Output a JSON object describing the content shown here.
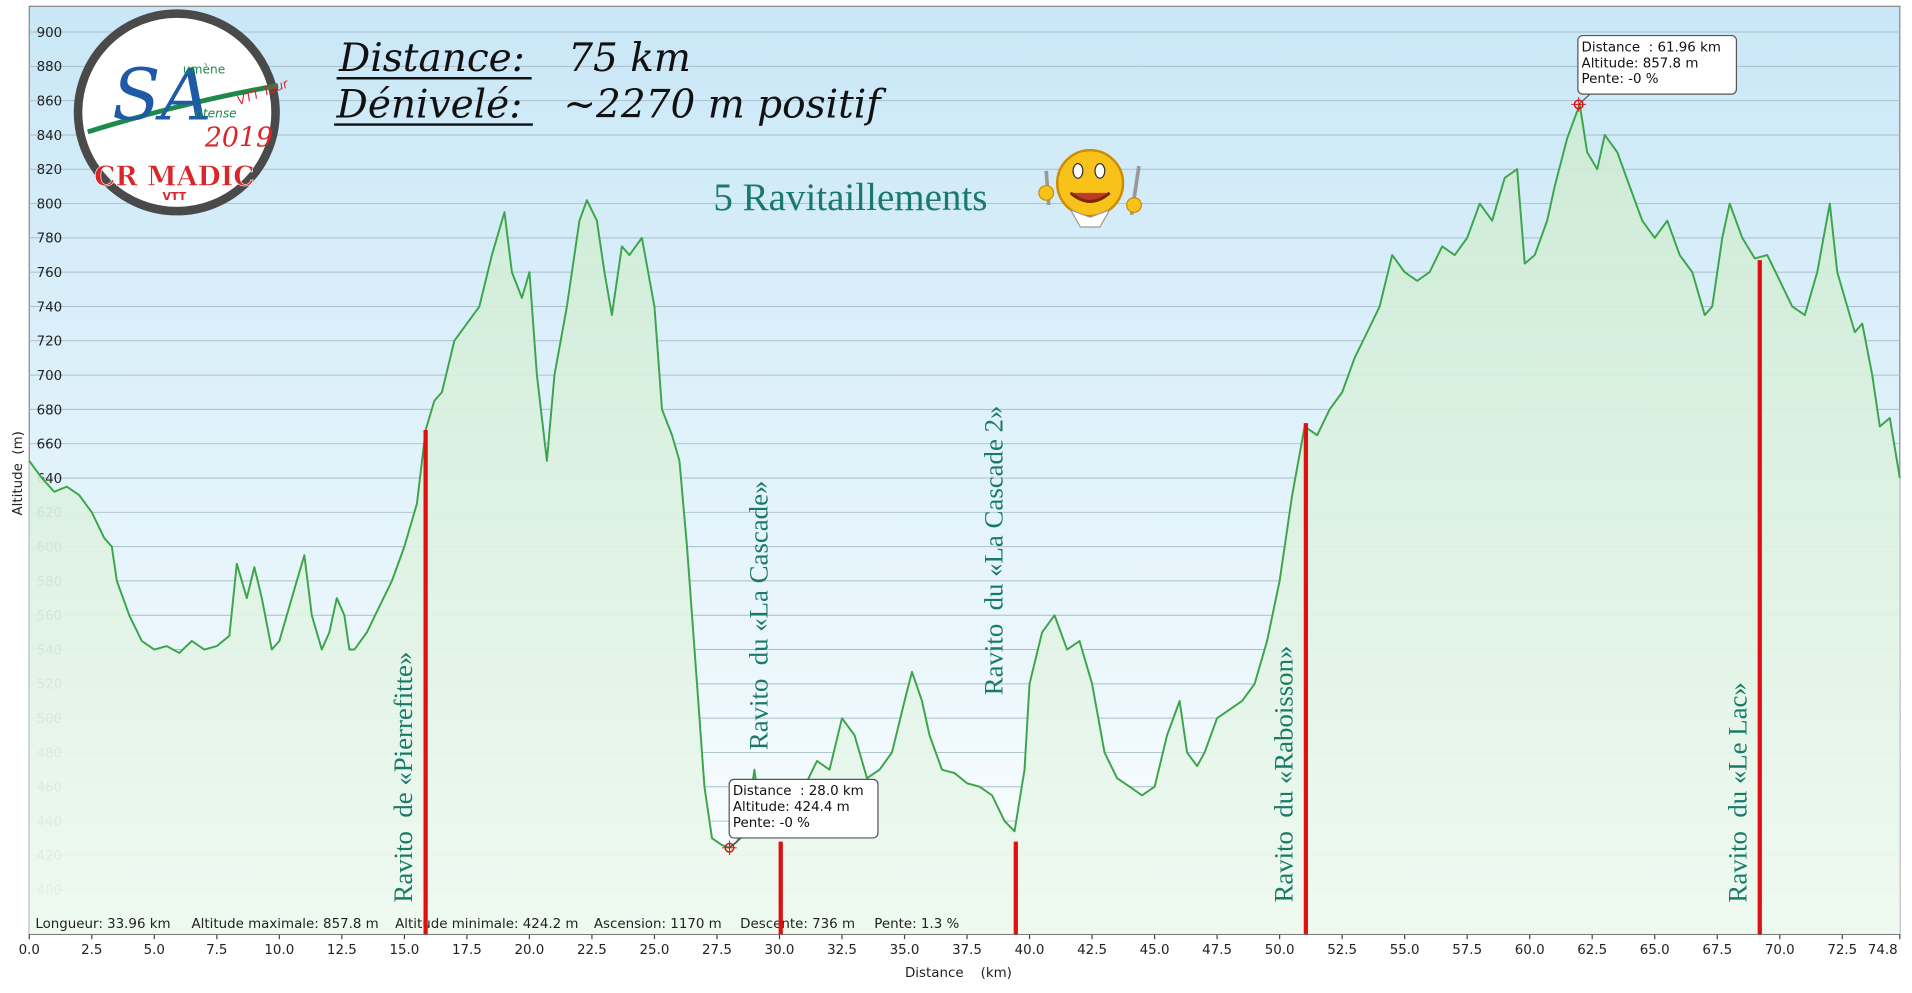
{
  "chart_data": {
    "type": "area",
    "title_lines": [
      {
        "label": "Distance:",
        "value": "75 km"
      },
      {
        "label": "Dénivelé:",
        "value": "~2270 m positif"
      }
    ],
    "subtitle": "5 Ravitaillements",
    "logo": {
      "letters": "SA",
      "line1": "umène",
      "line2": "ntense",
      "line3": "VTT Tour",
      "year": "2019",
      "club": "CR MADIC",
      "club_sub": "VTT"
    },
    "x_label": "Distance    (km)",
    "y_label": "Altitude  (m)",
    "color": "#3aa54a",
    "x": [
      0,
      0.5,
      1,
      1.5,
      2,
      2.5,
      3,
      3.3,
      3.5,
      4,
      4.5,
      5,
      5.5,
      6,
      6.5,
      7,
      7.5,
      8,
      8.3,
      8.7,
      9,
      9.3,
      9.7,
      10,
      10.5,
      11,
      11.3,
      11.7,
      12,
      12.3,
      12.6,
      12.8,
      13,
      13.5,
      14,
      14.5,
      15,
      15.5,
      15.85,
      16.2,
      16.5,
      17,
      17.5,
      18,
      18.5,
      19,
      19.3,
      19.7,
      20,
      20.3,
      20.7,
      21,
      21.5,
      22,
      22.3,
      22.7,
      23,
      23.3,
      23.7,
      24,
      24.5,
      25,
      25.3,
      25.7,
      26,
      26.3,
      26.7,
      27,
      27.3,
      27.7,
      28,
      28.3,
      28.7,
      29,
      29.3,
      29.7,
      30,
      30.5,
      31,
      31.5,
      32,
      32.5,
      33,
      33.5,
      34,
      34.5,
      35,
      35.3,
      35.7,
      36,
      36.5,
      37,
      37.5,
      38,
      38.5,
      39,
      39.4,
      39.8,
      40,
      40.5,
      41,
      41.5,
      42,
      42.5,
      43,
      43.5,
      44,
      44.5,
      45,
      45.5,
      46,
      46.3,
      46.7,
      47,
      47.5,
      48,
      48.5,
      49,
      49.5,
      50,
      50.5,
      51,
      51.5,
      52,
      52.5,
      53,
      53.5,
      54,
      54.5,
      55,
      55.5,
      56,
      56.5,
      57,
      57.5,
      58,
      58.5,
      59,
      59.5,
      59.8,
      60.2,
      60.7,
      61,
      61.5,
      62,
      62.3,
      62.7,
      63,
      63.5,
      64,
      64.5,
      65,
      65.5,
      66,
      66.5,
      67,
      67.3,
      67.7,
      68,
      68.5,
      69,
      69.5,
      70,
      70.5,
      71,
      71.5,
      72,
      72.3,
      72.7,
      73,
      73.3,
      73.7,
      74,
      74.4,
      74.8
    ],
    "values": [
      650,
      640,
      632,
      635,
      630,
      620,
      605,
      600,
      580,
      560,
      545,
      540,
      542,
      538,
      545,
      540,
      542,
      548,
      590,
      570,
      588,
      570,
      540,
      545,
      570,
      595,
      560,
      540,
      550,
      570,
      560,
      540,
      540,
      550,
      565,
      580,
      600,
      625,
      668,
      685,
      690,
      720,
      730,
      740,
      770,
      795,
      760,
      745,
      760,
      700,
      650,
      700,
      740,
      790,
      802,
      790,
      760,
      735,
      775,
      770,
      780,
      740,
      680,
      665,
      650,
      600,
      520,
      460,
      430,
      426,
      424.4,
      428,
      440,
      470,
      435,
      440,
      445,
      450,
      460,
      475,
      470,
      500,
      490,
      465,
      470,
      480,
      510,
      527,
      510,
      490,
      470,
      468,
      462,
      460,
      455,
      440,
      434,
      470,
      520,
      550,
      560,
      540,
      545,
      520,
      480,
      465,
      460,
      455,
      460,
      490,
      510,
      480,
      472,
      480,
      500,
      505,
      510,
      520,
      545,
      580,
      630,
      670,
      665,
      680,
      690,
      710,
      725,
      740,
      770,
      760,
      755,
      760,
      775,
      770,
      780,
      800,
      790,
      815,
      820,
      765,
      770,
      790,
      810,
      838,
      857.8,
      830,
      820,
      840,
      830,
      810,
      790,
      780,
      790,
      770,
      760,
      735,
      740,
      780,
      800,
      780,
      768,
      770,
      755,
      740,
      735,
      760,
      800,
      760,
      740,
      725,
      730,
      700,
      670,
      675,
      640
    ],
    "xlim": [
      0,
      74.8
    ],
    "ylim": [
      374,
      915
    ],
    "xticks": [
      {
        "value": 0,
        "label": "0.0"
      },
      2.5,
      {
        "value": 5,
        "label": "5.0"
      },
      7.5,
      {
        "value": 10,
        "label": "10.0"
      },
      12.5,
      {
        "value": 15,
        "label": "15.0"
      },
      17.5,
      {
        "value": 20,
        "label": "20.0"
      },
      22.5,
      {
        "value": 25,
        "label": "25.0"
      },
      27.5,
      {
        "value": 30,
        "label": "30.0"
      },
      32.5,
      {
        "value": 35,
        "label": "35.0"
      },
      37.5,
      {
        "value": 40,
        "label": "40.0"
      },
      42.5,
      {
        "value": 45,
        "label": "45.0"
      },
      47.5,
      {
        "value": 50,
        "label": "50.0"
      },
      52.5,
      {
        "value": 55,
        "label": "55.0"
      },
      57.5,
      {
        "value": 60,
        "label": "60.0"
      },
      62.5,
      {
        "value": 65,
        "label": "65.0"
      },
      67.5,
      {
        "value": 70,
        "label": "70.0"
      },
      72.5,
      74.8
    ],
    "yticks": [
      400,
      420,
      440,
      460,
      480,
      500,
      520,
      540,
      560,
      580,
      600,
      620,
      640,
      660,
      680,
      700,
      720,
      740,
      760,
      780,
      800,
      820,
      840,
      860,
      880,
      900
    ],
    "grid": true,
    "ravitos": [
      {
        "label": "Ravito  de «Pierrefitte»",
        "x": 15.85,
        "y": 668
      },
      {
        "label": "Ravito  du «La Cascade»",
        "x": 30.05,
        "y": 428
      },
      {
        "label": "Ravito  du «La Cascade 2»",
        "x": 39.45,
        "y": 428
      },
      {
        "label": "Ravito  du «Raboisson»",
        "x": 51.05,
        "y": 672
      },
      {
        "label": "Ravito  du «Le Lac»",
        "x": 69.2,
        "y": 767
      }
    ],
    "marker_color": "#e01010",
    "tooltips": [
      {
        "lines": [
          "Distance  : 28.0 km",
          "Altitude: 424.4 m",
          "Pente: -0 %"
        ],
        "x": 28.0,
        "y": 424.4
      },
      {
        "lines": [
          "Distance  : 61.96 km",
          "Altitude: 857.8 m",
          "Pente: -0 %"
        ],
        "x": 61.96,
        "y": 857.8
      }
    ],
    "stats": [
      "Longueur: 33.96 km",
      "Altitude maximale: 857.8 m",
      "Altitude minimale: 424.2 m",
      "Ascension: 1170 m",
      "Descente: 736 m",
      "Pente: 1.3 %"
    ]
  }
}
